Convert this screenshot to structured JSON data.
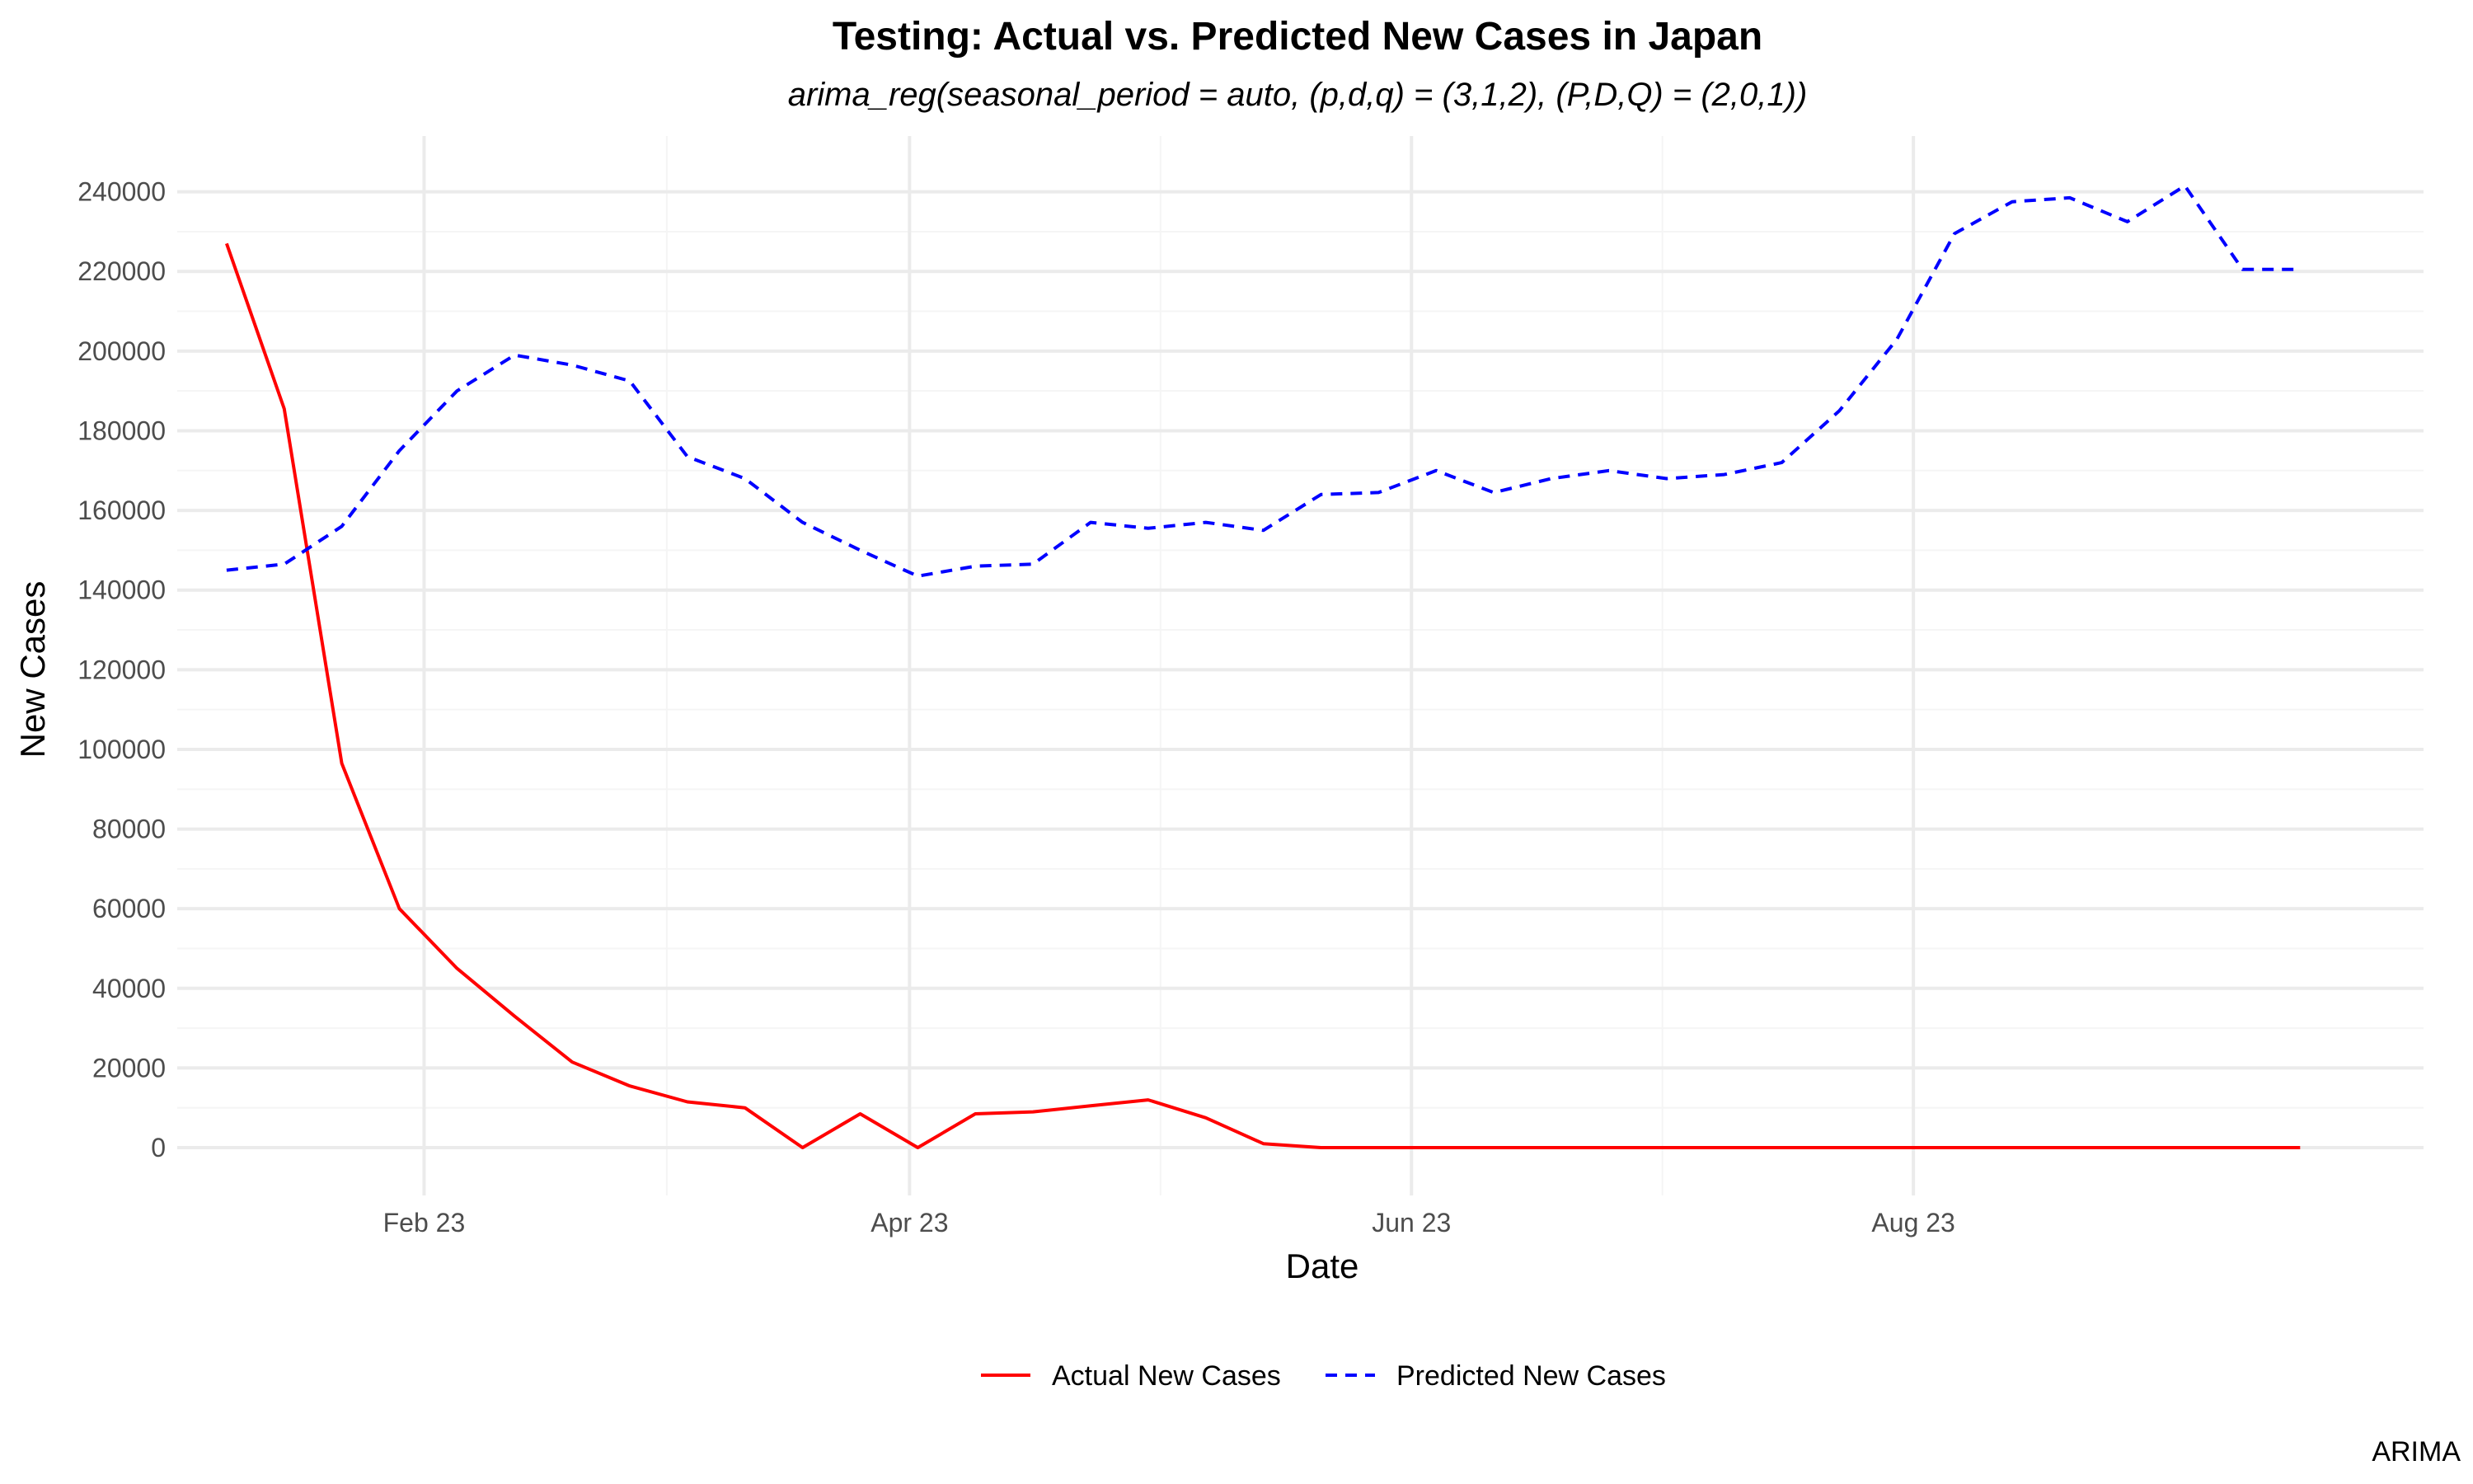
{
  "chart_data": {
    "type": "line",
    "title": "Testing: Actual vs. Predicted New Cases in Japan",
    "subtitle": "arima_reg(seasonal_period = auto, (p,d,q) = (3,1,2), (P,D,Q) = (2,0,1))",
    "xlabel": "Date",
    "ylabel": "New Cases",
    "caption": "ARIMA",
    "x_ticks": [
      {
        "date": "2023-02-01",
        "label": "Feb 23"
      },
      {
        "date": "2023-04-01",
        "label": "Apr 23"
      },
      {
        "date": "2023-06-01",
        "label": "Jun 23"
      },
      {
        "date": "2023-08-01",
        "label": "Aug 23"
      }
    ],
    "y_ticks": [
      0,
      20000,
      40000,
      60000,
      80000,
      100000,
      120000,
      140000,
      160000,
      180000,
      200000,
      220000,
      240000
    ],
    "xlim": [
      "2023-01-02",
      "2023-10-02"
    ],
    "ylim": [
      -12000,
      254000
    ],
    "grid": true,
    "legend_position": "bottom",
    "x": [
      "2023-01-08",
      "2023-01-15",
      "2023-01-22",
      "2023-01-29",
      "2023-02-05",
      "2023-02-12",
      "2023-02-19",
      "2023-02-26",
      "2023-03-05",
      "2023-03-12",
      "2023-03-19",
      "2023-03-26",
      "2023-04-02",
      "2023-04-09",
      "2023-04-16",
      "2023-04-23",
      "2023-04-30",
      "2023-05-07",
      "2023-05-14",
      "2023-05-21",
      "2023-05-28",
      "2023-06-04",
      "2023-06-11",
      "2023-06-18",
      "2023-06-25",
      "2023-07-02",
      "2023-07-09",
      "2023-07-16",
      "2023-07-23",
      "2023-07-30",
      "2023-08-06",
      "2023-08-13",
      "2023-08-20",
      "2023-08-27",
      "2023-09-03",
      "2023-09-10",
      "2023-09-17"
    ],
    "series": [
      {
        "name": "Actual New Cases",
        "color": "#ff0000",
        "dash": "solid",
        "values": [
          227000,
          185500,
          96500,
          60000,
          45000,
          33000,
          21500,
          15500,
          11500,
          10000,
          0,
          8500,
          0,
          8500,
          9000,
          10500,
          12000,
          7500,
          1000,
          0,
          0,
          0,
          0,
          0,
          0,
          0,
          0,
          0,
          0,
          0,
          0,
          0,
          0,
          0,
          0,
          0,
          0
        ]
      },
      {
        "name": "Predicted New Cases",
        "color": "#0000ff",
        "dash": "dashed",
        "values": [
          145000,
          146500,
          156000,
          175000,
          190000,
          199000,
          196500,
          192500,
          173500,
          168000,
          157000,
          150000,
          143500,
          146000,
          146500,
          157000,
          155500,
          157000,
          155000,
          164000,
          164500,
          170000,
          164500,
          168000,
          170000,
          168000,
          169000,
          172000,
          185000,
          203000,
          229500,
          237500,
          238500,
          232500,
          241500,
          220500,
          220500
        ]
      }
    ]
  }
}
